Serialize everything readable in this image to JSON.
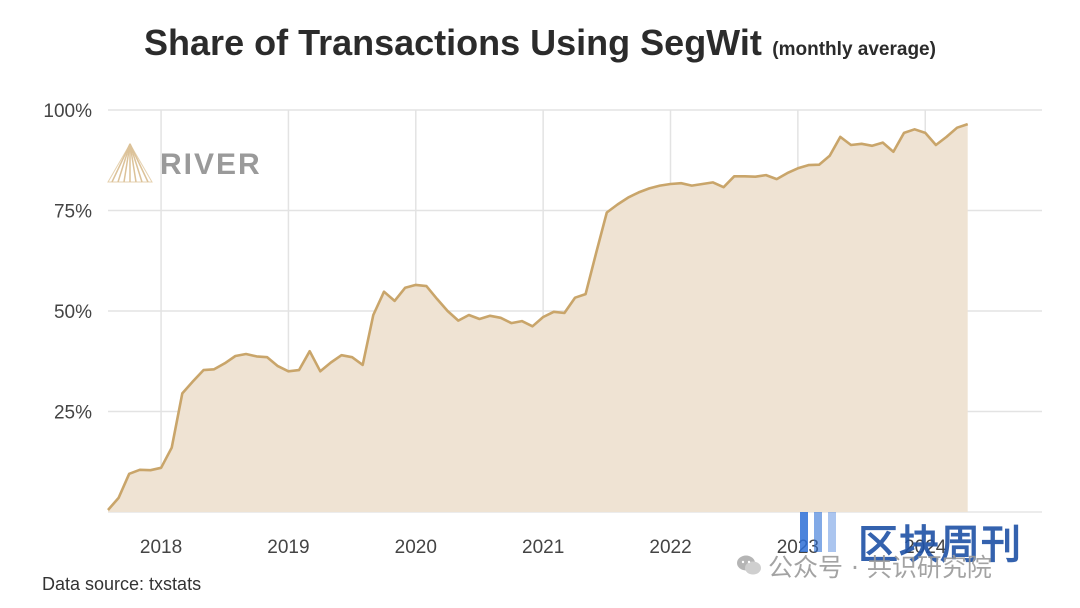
{
  "title": "Share of Transactions Using SegWit",
  "subtitle": "(monthly average)",
  "source": "Data source: txstats",
  "logo_text": "RIVER",
  "watermark": {
    "brand": "区块周刊",
    "account": "公众号 · 共识研究院"
  },
  "colors": {
    "line": "#c9a56a",
    "fill": "#efe3d3",
    "grid": "#e3e3e3",
    "logo": "#9a9a9a",
    "watermark_blue": "#1f52a6"
  },
  "chart_data": {
    "type": "area",
    "title": "Share of Transactions Using SegWit",
    "subtitle": "(monthly average)",
    "xlabel": "",
    "ylabel": "",
    "ylim": [
      0,
      100
    ],
    "xlim": [
      "2017-08",
      "2024-12"
    ],
    "y_ticks": [
      25,
      50,
      75,
      100
    ],
    "y_tick_labels": [
      "25%",
      "50%",
      "75%",
      "100%"
    ],
    "x_tick_labels": [
      "2018",
      "2019",
      "2020",
      "2021",
      "2022",
      "2023",
      "2024"
    ],
    "grid": true,
    "series": [
      {
        "x": [
          "2017-08",
          "2017-09",
          "2017-10",
          "2017-11",
          "2017-12",
          "2018-01",
          "2018-02",
          "2018-03",
          "2018-04",
          "2018-05",
          "2018-06",
          "2018-07",
          "2018-08",
          "2018-09",
          "2018-10",
          "2018-11",
          "2018-12",
          "2019-01",
          "2019-02",
          "2019-03",
          "2019-04",
          "2019-05",
          "2019-06",
          "2019-07",
          "2019-08",
          "2019-09",
          "2019-10",
          "2019-11",
          "2019-12",
          "2020-01",
          "2020-02",
          "2020-03",
          "2020-04",
          "2020-05",
          "2020-06",
          "2020-07",
          "2020-08",
          "2020-09",
          "2020-10",
          "2020-11",
          "2020-12",
          "2021-01",
          "2021-02",
          "2021-03",
          "2021-04",
          "2021-05",
          "2021-06",
          "2021-07",
          "2021-08",
          "2021-09",
          "2021-10",
          "2021-11",
          "2021-12",
          "2022-01",
          "2022-02",
          "2022-03",
          "2022-04",
          "2022-05",
          "2022-06",
          "2022-07",
          "2022-08",
          "2022-09",
          "2022-10",
          "2022-11",
          "2022-12",
          "2023-01",
          "2023-02",
          "2023-03",
          "2023-04",
          "2023-05",
          "2023-06",
          "2023-07",
          "2023-08",
          "2023-09",
          "2023-10",
          "2023-11",
          "2023-12",
          "2024-01",
          "2024-02",
          "2024-03",
          "2024-04",
          "2024-05"
        ],
        "values": [
          0.5,
          3.5,
          9.5,
          10.5,
          10.4,
          11,
          16,
          29.5,
          32.5,
          35.3,
          35.5,
          37,
          38.8,
          39.3,
          38.7,
          38.5,
          36.3,
          35,
          35.3,
          40,
          35,
          37.2,
          39,
          38.5,
          36.6,
          49,
          54.8,
          52.5,
          55.8,
          56.5,
          56.2,
          53,
          50,
          47.6,
          49,
          48,
          48.8,
          48.3,
          47,
          47.5,
          46.2,
          48.5,
          49.8,
          49.5,
          53.3,
          54.2,
          64.5,
          74.5,
          76.5,
          78.2,
          79.5,
          80.5,
          81.2,
          81.6,
          81.8,
          81.2,
          81.6,
          82,
          80.8,
          83.5,
          83.5,
          83.4,
          83.8,
          82.8,
          84.3,
          85.5,
          86.3,
          86.4,
          88.6,
          93.3,
          91.3,
          91.6,
          91.1,
          91.9,
          89.6,
          94.3,
          95.2,
          94.3,
          91.3,
          93.3,
          95.6,
          96.5
        ]
      }
    ]
  }
}
